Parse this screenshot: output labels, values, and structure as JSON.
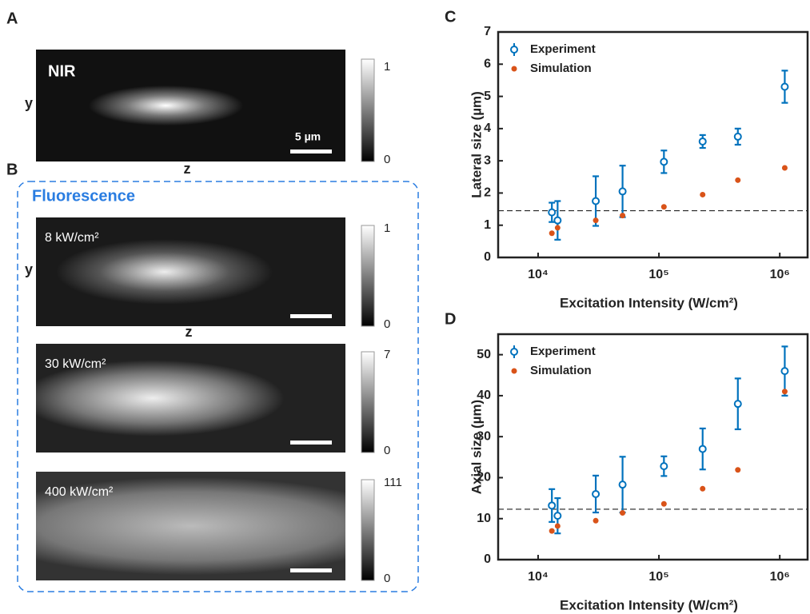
{
  "panels": {
    "A": {
      "label": "A",
      "image_label": "NIR",
      "y_label": "y",
      "z_label": "z",
      "scale_bar": "5 µm",
      "colorbar": [
        1,
        0
      ]
    },
    "B": {
      "label": "B",
      "title": "Fluorescence",
      "y_label": "y",
      "z_label": "z",
      "images": [
        {
          "label": "8 kW/cm²",
          "colorbar": [
            1,
            0
          ]
        },
        {
          "label": "30 kW/cm²",
          "colorbar": [
            7,
            0
          ]
        },
        {
          "label": "400 kW/cm²",
          "colorbar": [
            111,
            0
          ]
        }
      ]
    }
  },
  "chart_data": [
    {
      "type": "errorbar",
      "panel_label": "C",
      "xlabel": "Excitation Intensity (W/cm²)",
      "ylabel": "Lateral size (µm)",
      "x": [
        13000,
        14500,
        30000,
        50000,
        110000,
        230000,
        450000,
        1100000
      ],
      "series": [
        {
          "name": "Experiment",
          "color": "#0072bd",
          "values": [
            1.4,
            1.15,
            1.75,
            2.05,
            2.97,
            3.6,
            3.75,
            5.3
          ],
          "errors": [
            0.3,
            0.6,
            0.77,
            0.8,
            0.35,
            0.2,
            0.25,
            0.5
          ]
        },
        {
          "name": "Simulation",
          "color": "#d95319",
          "values": [
            0.75,
            0.92,
            1.15,
            1.3,
            1.57,
            1.95,
            2.4,
            2.78
          ]
        }
      ],
      "reference_line": 1.45,
      "xlog": true,
      "xlim": [
        4670,
        1700000
      ],
      "xticks": [
        {
          "value": 10000,
          "label": "10⁴"
        },
        {
          "value": 100000,
          "label": "10⁵"
        },
        {
          "value": 1000000,
          "label": "10⁶"
        }
      ],
      "ylim": [
        0,
        7
      ],
      "yticks": [
        0,
        1,
        2,
        3,
        4,
        5,
        6,
        7
      ],
      "legend": "upper left"
    },
    {
      "type": "errorbar",
      "panel_label": "D",
      "xlabel": "Excitation Intensity (W/cm²)",
      "ylabel": "Axial size (µm)",
      "x": [
        13000,
        14500,
        30000,
        50000,
        110000,
        230000,
        450000,
        1100000
      ],
      "series": [
        {
          "name": "Experiment",
          "color": "#0072bd",
          "values": [
            13.2,
            10.7,
            16,
            18.3,
            22.8,
            27,
            38,
            46
          ],
          "errors": [
            4,
            4.3,
            4.5,
            6.8,
            2.4,
            5,
            6.2,
            6
          ]
        },
        {
          "name": "Simulation",
          "color": "#d95319",
          "values": [
            7,
            8.2,
            9.5,
            11.4,
            13.6,
            17.3,
            21.9,
            41
          ]
        }
      ],
      "reference_line": 12.3,
      "xlog": true,
      "xlim": [
        4670,
        1700000
      ],
      "xticks": [
        {
          "value": 10000,
          "label": "10⁴"
        },
        {
          "value": 100000,
          "label": "10⁵"
        },
        {
          "value": 1000000,
          "label": "10⁶"
        }
      ],
      "ylim": [
        0,
        55
      ],
      "yticks": [
        0,
        10,
        20,
        30,
        40,
        50
      ],
      "legend": "upper left"
    }
  ]
}
